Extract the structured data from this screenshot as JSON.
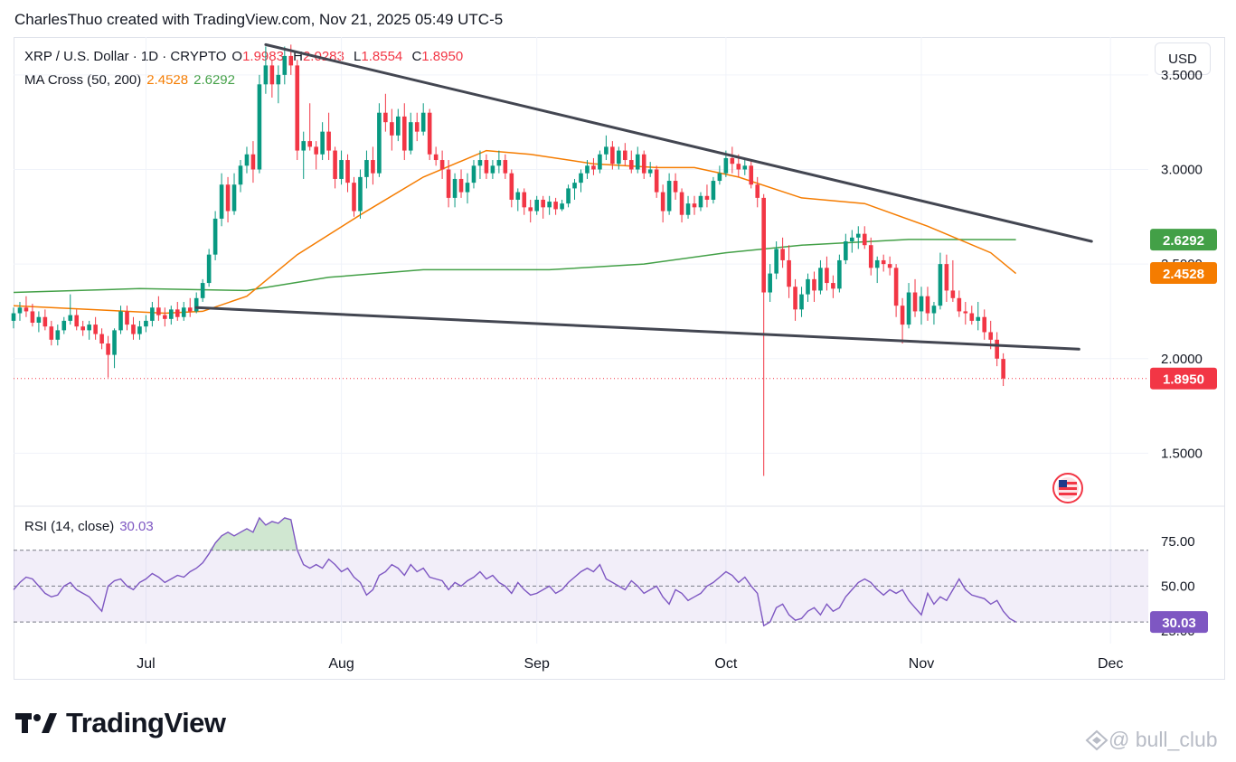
{
  "caption": "CharlesThuo created with TradingView.com, Nov 21, 2025 05:49 UTC-5",
  "legend": {
    "symbol": "XRP / U.S. Dollar · 1D · CRYPTO",
    "o_label": "O",
    "o_value": "1.9983",
    "h_label": "H",
    "h_value": "2.0283",
    "l_label": "L",
    "l_value": "1.8554",
    "c_label": "C",
    "c_value": "1.8950",
    "ma_label": "MA Cross (50, 200)",
    "ma50_value": "2.4528",
    "ma200_value": "2.6292",
    "rsi_label": "RSI (14, close)",
    "rsi_value": "30.03"
  },
  "toolbar": {
    "currency_button": "USD"
  },
  "brand": {
    "name": "TradingView"
  },
  "watermark": {
    "text": "@ bull_club"
  },
  "colors": {
    "up": "#089981",
    "down": "#f23645",
    "ma50": "#f57c00",
    "ma200": "#43a047",
    "rsi": "#7e57c2",
    "trendline": "#434651"
  },
  "chart_data": {
    "type": "candlestick",
    "symbol": "XRP / U.S. Dollar",
    "interval": "1D",
    "x_labels": [
      "Jul",
      "Aug",
      "Sep",
      "Oct",
      "Nov",
      "Dec"
    ],
    "x_range": [
      "2025-06-10",
      "2025-12-07"
    ],
    "y_ticks": [
      "3.5000",
      "3.0000",
      "2.5000",
      "2.0000",
      "1.5000"
    ],
    "y_range": [
      1.22,
      3.7
    ],
    "price_badges": [
      {
        "label": "2.6292",
        "value": 2.6292,
        "color": "#43a047"
      },
      {
        "label": "2.4528",
        "value": 2.4528,
        "color": "#f57c00"
      },
      {
        "label": "1.8950",
        "value": 1.895,
        "color": "#f23645"
      }
    ],
    "last_close": 1.895,
    "first_date": "2025-06-10",
    "ohlc": [
      [
        2.2,
        2.27,
        2.16,
        2.24
      ],
      [
        2.24,
        2.3,
        2.2,
        2.27
      ],
      [
        2.27,
        2.33,
        2.22,
        2.25
      ],
      [
        2.25,
        2.29,
        2.17,
        2.19
      ],
      [
        2.19,
        2.25,
        2.14,
        2.22
      ],
      [
        2.22,
        2.26,
        2.15,
        2.17
      ],
      [
        2.17,
        2.2,
        2.07,
        2.1
      ],
      [
        2.1,
        2.18,
        2.07,
        2.15
      ],
      [
        2.15,
        2.22,
        2.13,
        2.2
      ],
      [
        2.2,
        2.34,
        2.18,
        2.23
      ],
      [
        2.23,
        2.26,
        2.15,
        2.17
      ],
      [
        2.17,
        2.2,
        2.12,
        2.15
      ],
      [
        2.15,
        2.2,
        2.1,
        2.18
      ],
      [
        2.18,
        2.22,
        2.1,
        2.13
      ],
      [
        2.13,
        2.16,
        2.05,
        2.08
      ],
      [
        2.08,
        2.12,
        1.9,
        2.02
      ],
      [
        2.02,
        2.16,
        1.95,
        2.15
      ],
      [
        2.15,
        2.28,
        2.13,
        2.25
      ],
      [
        2.25,
        2.28,
        2.15,
        2.18
      ],
      [
        2.18,
        2.22,
        2.1,
        2.13
      ],
      [
        2.13,
        2.2,
        2.1,
        2.17
      ],
      [
        2.17,
        2.23,
        2.14,
        2.2
      ],
      [
        2.2,
        2.3,
        2.17,
        2.27
      ],
      [
        2.27,
        2.33,
        2.2,
        2.23
      ],
      [
        2.23,
        2.27,
        2.17,
        2.21
      ],
      [
        2.21,
        2.28,
        2.18,
        2.26
      ],
      [
        2.26,
        2.3,
        2.2,
        2.22
      ],
      [
        2.22,
        2.3,
        2.2,
        2.27
      ],
      [
        2.27,
        2.32,
        2.22,
        2.25
      ],
      [
        2.25,
        2.35,
        2.24,
        2.32
      ],
      [
        2.32,
        2.42,
        2.3,
        2.4
      ],
      [
        2.4,
        2.58,
        2.38,
        2.55
      ],
      [
        2.55,
        2.78,
        2.52,
        2.74
      ],
      [
        2.74,
        2.98,
        2.7,
        2.92
      ],
      [
        2.92,
        2.96,
        2.72,
        2.78
      ],
      [
        2.78,
        2.98,
        2.76,
        2.92
      ],
      [
        2.92,
        3.05,
        2.88,
        3.02
      ],
      [
        3.02,
        3.12,
        2.98,
        3.08
      ],
      [
        3.08,
        3.15,
        2.93,
        3.0
      ],
      [
        3.0,
        3.5,
        2.98,
        3.45
      ],
      [
        3.45,
        3.65,
        3.4,
        3.55
      ],
      [
        3.55,
        3.58,
        3.38,
        3.45
      ],
      [
        3.45,
        3.55,
        3.35,
        3.5
      ],
      [
        3.5,
        3.65,
        3.45,
        3.6
      ],
      [
        3.6,
        3.66,
        3.5,
        3.55
      ],
      [
        3.55,
        3.58,
        3.05,
        3.1
      ],
      [
        3.1,
        3.2,
        2.95,
        3.15
      ],
      [
        3.15,
        3.35,
        3.1,
        3.12
      ],
      [
        3.12,
        3.15,
        3.0,
        3.08
      ],
      [
        3.08,
        3.25,
        3.05,
        3.2
      ],
      [
        3.2,
        3.3,
        3.05,
        3.1
      ],
      [
        3.1,
        3.12,
        2.9,
        2.95
      ],
      [
        2.95,
        3.1,
        2.92,
        3.05
      ],
      [
        3.05,
        3.08,
        2.88,
        2.93
      ],
      [
        2.93,
        2.96,
        2.75,
        2.78
      ],
      [
        2.78,
        3.0,
        2.74,
        2.96
      ],
      [
        2.96,
        3.1,
        2.9,
        3.05
      ],
      [
        3.05,
        3.12,
        2.92,
        2.98
      ],
      [
        2.98,
        3.35,
        2.96,
        3.3
      ],
      [
        3.3,
        3.4,
        3.2,
        3.25
      ],
      [
        3.25,
        3.32,
        3.1,
        3.18
      ],
      [
        3.18,
        3.32,
        3.15,
        3.28
      ],
      [
        3.28,
        3.35,
        3.05,
        3.1
      ],
      [
        3.1,
        3.3,
        3.08,
        3.25
      ],
      [
        3.25,
        3.3,
        3.15,
        3.2
      ],
      [
        3.2,
        3.35,
        3.18,
        3.3
      ],
      [
        3.3,
        3.32,
        3.05,
        3.08
      ],
      [
        3.08,
        3.12,
        3.02,
        3.05
      ],
      [
        3.05,
        3.1,
        2.95,
        3.0
      ],
      [
        3.0,
        3.05,
        2.8,
        2.85
      ],
      [
        2.85,
        2.98,
        2.8,
        2.95
      ],
      [
        2.95,
        3.0,
        2.85,
        2.88
      ],
      [
        2.88,
        2.98,
        2.82,
        2.93
      ],
      [
        2.93,
        3.05,
        2.9,
        3.02
      ],
      [
        3.02,
        3.1,
        2.95,
        3.05
      ],
      [
        3.05,
        3.08,
        2.95,
        2.98
      ],
      [
        2.98,
        3.05,
        2.95,
        3.02
      ],
      [
        3.02,
        3.1,
        2.98,
        3.05
      ],
      [
        3.05,
        3.08,
        2.95,
        2.98
      ],
      [
        2.98,
        3.0,
        2.8,
        2.84
      ],
      [
        2.84,
        2.9,
        2.78,
        2.88
      ],
      [
        2.88,
        2.9,
        2.76,
        2.8
      ],
      [
        2.8,
        2.84,
        2.72,
        2.78
      ],
      [
        2.78,
        2.86,
        2.76,
        2.84
      ],
      [
        2.84,
        2.86,
        2.74,
        2.8
      ],
      [
        2.8,
        2.86,
        2.76,
        2.83
      ],
      [
        2.83,
        2.85,
        2.76,
        2.79
      ],
      [
        2.79,
        2.84,
        2.78,
        2.82
      ],
      [
        2.82,
        2.92,
        2.8,
        2.9
      ],
      [
        2.9,
        2.95,
        2.84,
        2.93
      ],
      [
        2.93,
        3.0,
        2.88,
        2.98
      ],
      [
        2.98,
        3.05,
        2.95,
        3.02
      ],
      [
        3.02,
        3.06,
        2.97,
        3.0
      ],
      [
        3.0,
        3.1,
        2.98,
        3.08
      ],
      [
        3.08,
        3.18,
        3.05,
        3.12
      ],
      [
        3.12,
        3.15,
        3.0,
        3.03
      ],
      [
        3.03,
        3.12,
        3.0,
        3.1
      ],
      [
        3.1,
        3.14,
        3.02,
        3.05
      ],
      [
        3.05,
        3.1,
        2.98,
        3.0
      ],
      [
        3.0,
        3.12,
        2.98,
        3.08
      ],
      [
        3.08,
        3.1,
        2.95,
        2.98
      ],
      [
        2.98,
        3.04,
        2.96,
        3.0
      ],
      [
        3.0,
        3.02,
        2.85,
        2.88
      ],
      [
        2.88,
        2.92,
        2.72,
        2.78
      ],
      [
        2.78,
        2.98,
        2.76,
        2.94
      ],
      [
        2.94,
        2.98,
        2.84,
        2.88
      ],
      [
        2.88,
        2.9,
        2.72,
        2.76
      ],
      [
        2.76,
        2.86,
        2.74,
        2.82
      ],
      [
        2.82,
        2.86,
        2.76,
        2.8
      ],
      [
        2.8,
        2.88,
        2.78,
        2.86
      ],
      [
        2.86,
        2.92,
        2.8,
        2.84
      ],
      [
        2.84,
        2.96,
        2.82,
        2.94
      ],
      [
        2.94,
        3.02,
        2.92,
        2.98
      ],
      [
        2.98,
        3.1,
        2.96,
        3.06
      ],
      [
        3.06,
        3.12,
        2.98,
        3.03
      ],
      [
        3.03,
        3.08,
        2.96,
        3.0
      ],
      [
        3.0,
        3.06,
        2.97,
        3.02
      ],
      [
        3.02,
        3.05,
        2.9,
        2.92
      ],
      [
        2.92,
        2.96,
        2.8,
        2.85
      ],
      [
        2.85,
        2.87,
        1.38,
        2.35
      ],
      [
        2.35,
        2.5,
        2.3,
        2.45
      ],
      [
        2.45,
        2.62,
        2.42,
        2.58
      ],
      [
        2.58,
        2.64,
        2.48,
        2.52
      ],
      [
        2.52,
        2.6,
        2.32,
        2.38
      ],
      [
        2.38,
        2.42,
        2.2,
        2.26
      ],
      [
        2.26,
        2.38,
        2.22,
        2.34
      ],
      [
        2.34,
        2.45,
        2.3,
        2.42
      ],
      [
        2.42,
        2.46,
        2.3,
        2.36
      ],
      [
        2.36,
        2.52,
        2.34,
        2.48
      ],
      [
        2.48,
        2.54,
        2.36,
        2.4
      ],
      [
        2.4,
        2.44,
        2.32,
        2.37
      ],
      [
        2.37,
        2.55,
        2.35,
        2.52
      ],
      [
        2.52,
        2.66,
        2.5,
        2.62
      ],
      [
        2.62,
        2.68,
        2.56,
        2.64
      ],
      [
        2.64,
        2.7,
        2.58,
        2.66
      ],
      [
        2.66,
        2.7,
        2.58,
        2.6
      ],
      [
        2.6,
        2.64,
        2.44,
        2.48
      ],
      [
        2.48,
        2.54,
        2.4,
        2.52
      ],
      [
        2.52,
        2.55,
        2.46,
        2.5
      ],
      [
        2.5,
        2.54,
        2.44,
        2.48
      ],
      [
        2.48,
        2.5,
        2.22,
        2.28
      ],
      [
        2.28,
        2.32,
        2.08,
        2.18
      ],
      [
        2.18,
        2.4,
        2.16,
        2.35
      ],
      [
        2.35,
        2.42,
        2.22,
        2.25
      ],
      [
        2.25,
        2.38,
        2.18,
        2.33
      ],
      [
        2.33,
        2.38,
        2.2,
        2.24
      ],
      [
        2.24,
        2.3,
        2.18,
        2.28
      ],
      [
        2.28,
        2.56,
        2.26,
        2.5
      ],
      [
        2.5,
        2.55,
        2.3,
        2.36
      ],
      [
        2.36,
        2.52,
        2.3,
        2.32
      ],
      [
        2.32,
        2.36,
        2.22,
        2.25
      ],
      [
        2.25,
        2.3,
        2.18,
        2.24
      ],
      [
        2.24,
        2.28,
        2.18,
        2.2
      ],
      [
        2.2,
        2.3,
        2.15,
        2.22
      ],
      [
        2.22,
        2.26,
        2.1,
        2.14
      ],
      [
        2.14,
        2.2,
        2.05,
        2.1
      ],
      [
        2.1,
        2.14,
        1.96,
        2.0
      ],
      [
        1.9983,
        2.0283,
        1.8554,
        1.895
      ]
    ],
    "ma50": {
      "name": "MA 50",
      "value": 2.4528,
      "points": [
        [
          0,
          2.28
        ],
        [
          24,
          2.24
        ],
        [
          30,
          2.25
        ],
        [
          37,
          2.33
        ],
        [
          45,
          2.55
        ],
        [
          55,
          2.76
        ],
        [
          65,
          2.96
        ],
        [
          75,
          3.1
        ],
        [
          82,
          3.08
        ],
        [
          92,
          3.03
        ],
        [
          102,
          3.01
        ],
        [
          108,
          3.01
        ],
        [
          115,
          2.96
        ],
        [
          125,
          2.85
        ],
        [
          135,
          2.82
        ],
        [
          145,
          2.7
        ],
        [
          155,
          2.56
        ],
        [
          159,
          2.45
        ]
      ]
    },
    "ma200": {
      "name": "MA 200",
      "value": 2.6292,
      "points": [
        [
          0,
          2.35
        ],
        [
          20,
          2.37
        ],
        [
          37,
          2.36
        ],
        [
          50,
          2.43
        ],
        [
          65,
          2.47
        ],
        [
          85,
          2.47
        ],
        [
          100,
          2.5
        ],
        [
          113,
          2.56
        ],
        [
          125,
          2.6
        ],
        [
          142,
          2.63
        ],
        [
          159,
          2.6292
        ]
      ]
    },
    "trendlines": [
      {
        "from": [
          40,
          3.66
        ],
        "to": [
          171,
          2.62
        ]
      },
      {
        "from": [
          29,
          2.27
        ],
        "to": [
          169,
          2.05
        ]
      }
    ],
    "rsi": {
      "name": "RSI (14, close)",
      "value": 30.03,
      "y_ticks": [
        "75.00",
        "50.00",
        "25.00"
      ],
      "upper": 70,
      "middle": 50,
      "lower": 30,
      "y_range": [
        20,
        92
      ],
      "values": [
        48,
        52,
        55,
        54,
        50,
        46,
        44,
        45,
        50,
        52,
        48,
        46,
        44,
        40,
        36,
        50,
        53,
        54,
        50,
        48,
        52,
        54,
        57,
        55,
        52,
        54,
        56,
        55,
        58,
        60,
        63,
        68,
        74,
        78,
        80,
        78,
        80,
        82,
        80,
        88,
        84,
        86,
        85,
        88,
        87,
        70,
        62,
        60,
        62,
        60,
        65,
        62,
        58,
        60,
        55,
        52,
        45,
        48,
        56,
        58,
        62,
        60,
        56,
        62,
        58,
        60,
        55,
        54,
        53,
        48,
        52,
        50,
        53,
        55,
        58,
        54,
        56,
        52,
        50,
        46,
        52,
        48,
        45,
        46,
        48,
        50,
        46,
        48,
        52,
        55,
        58,
        60,
        58,
        62,
        54,
        52,
        50,
        48,
        53,
        50,
        46,
        48,
        50,
        44,
        40,
        48,
        46,
        42,
        44,
        46,
        50,
        52,
        55,
        58,
        56,
        52,
        55,
        50,
        46,
        28,
        30,
        38,
        40,
        34,
        31,
        32,
        36,
        38,
        34,
        40,
        36,
        38,
        44,
        48,
        52,
        54,
        52,
        48,
        45,
        48,
        46,
        48,
        42,
        38,
        34,
        46,
        40,
        44,
        42,
        48,
        54,
        48,
        45,
        44,
        43,
        40,
        42,
        36,
        32,
        30.03
      ]
    }
  }
}
